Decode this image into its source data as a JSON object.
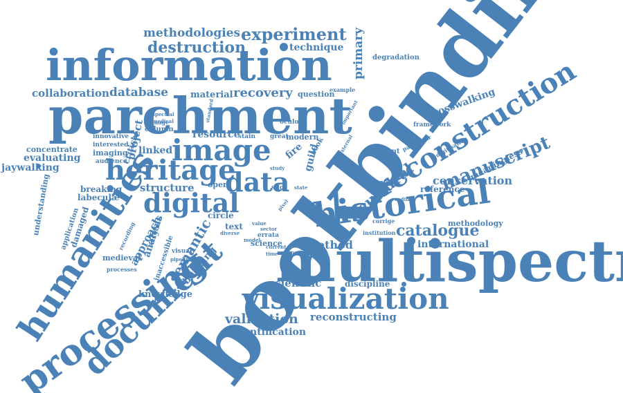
{
  "theme": {
    "word_color": "#4a82b8",
    "background": "#ffffff"
  },
  "words": {
    "bookbinding": "bookbinding",
    "multispectral": "multispectral",
    "parchment": "parchment",
    "information": "information",
    "image": "image",
    "heritage": "heritage",
    "humanities": "humanities",
    "processing": "processing",
    "document": "document",
    "visualization": "visualization",
    "reconstruction": "reconstruction",
    "historical": "historical",
    "digital": "digital",
    "data": "data",
    "manuscript": "manuscript",
    "cultural": "cultural",
    "catalogue": "catalogue",
    "conservation": "conservation",
    "crosswalking": "crosswalking",
    "experiment": "experiment",
    "methodologies": "methodologies",
    "destruction": "destruction",
    "technique": "technique",
    "primary": "primary",
    "degradation": "degradation",
    "collaboration": "collaboration",
    "database": "database",
    "material": "material",
    "recovery": "recovery",
    "question": "question",
    "example": "example",
    "resource": "resource",
    "stain": "stain",
    "great": "great",
    "modern": "modern",
    "fire": "fire",
    "guild": "guild",
    "book": "book",
    "present": "present",
    "particular": "particular",
    "framework": "framework",
    "digitisation": "digitisation",
    "meaningless": "meaningless",
    "reference": "reference",
    "methodology": "methodology",
    "international": "international",
    "method": "method",
    "science": "science",
    "errata": "errata",
    "text": "text",
    "semantic": "semantic",
    "scientific": "scientific",
    "discipline": "discipline",
    "validation": "validation",
    "reconstructing": "reconstructing",
    "identification": "identification",
    "knowledge": "knowledge",
    "building": "building",
    "approach": "approach",
    "analysis": "analysis",
    "medieval": "medieval",
    "structure": "structure",
    "breaking": "breaking",
    "labeculae": "labeculæ",
    "understanding": "understanding",
    "application": "application",
    "damaged": "damaged",
    "jaywalking": "jaywalking",
    "evaluating": "evaluating",
    "concentrate": "concentrate",
    "imaging": "imaging",
    "audience": "audience",
    "interested": "interested",
    "innovative": "innovative",
    "linked": "linked",
    "project": "project",
    "critical": "critical",
    "open": "open",
    "circle": "circle",
    "visual": "visual",
    "inaccessible": "inaccessible",
    "processes": "processes",
    "recording": "recording",
    "column": "column",
    "damage": "damage",
    "spectral": "spectral",
    "medical": "medical",
    "standard": "standard",
    "oculos": "oculos",
    "important": "important",
    "diverse": "diverse",
    "silo": "silo",
    "corrige": "corrige",
    "reading": "reading",
    "advance": "advance",
    "institution": "institution",
    "pipeline": "pipeline",
    "record": "record",
    "content": "content",
    "state": "state",
    "sector": "sector",
    "time": "time",
    "paper": "paper",
    "value": "value",
    "current": "current",
    "external": "external",
    "series": "series",
    "study": "study",
    "model": "model",
    "pixel": "pixel"
  }
}
